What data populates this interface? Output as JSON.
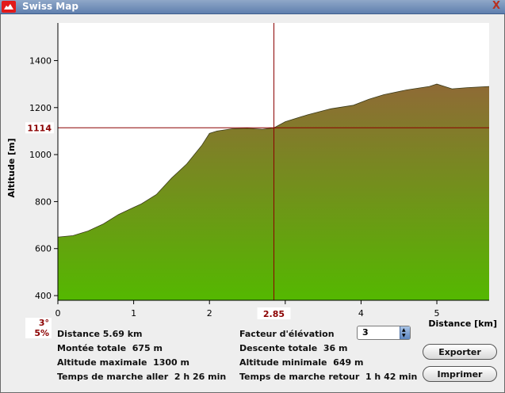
{
  "window": {
    "title": "Swiss Map",
    "close_label": "X"
  },
  "chart_data": {
    "type": "area",
    "xlabel": "Distance [km]",
    "ylabel": "Altitude [m]",
    "xlim": [
      0,
      5.69
    ],
    "ylim": [
      380,
      1560
    ],
    "x_ticks": [
      "0",
      "1",
      "2",
      "3",
      "4",
      "5"
    ],
    "y_ticks": [
      "400",
      "600",
      "800",
      "1000",
      "1200",
      "1400"
    ],
    "x": [
      0,
      0.2,
      0.4,
      0.6,
      0.8,
      1.0,
      1.1,
      1.3,
      1.5,
      1.7,
      1.9,
      2.0,
      2.1,
      2.3,
      2.5,
      2.7,
      2.85,
      3.0,
      3.3,
      3.6,
      3.9,
      4.1,
      4.3,
      4.6,
      4.9,
      5.0,
      5.2,
      5.4,
      5.69
    ],
    "y": [
      649,
      655,
      675,
      705,
      745,
      775,
      790,
      830,
      900,
      960,
      1040,
      1090,
      1100,
      1110,
      1112,
      1108,
      1114,
      1140,
      1170,
      1195,
      1210,
      1235,
      1255,
      1275,
      1290,
      1300,
      1280,
      1285,
      1290
    ],
    "cursor": {
      "x": 2.85,
      "x_label": "2.85",
      "y": 1114,
      "y_label": "1114"
    },
    "colors": {
      "fill_top": "#8f6a36",
      "fill_bottom": "#54b800",
      "cursor": "#8b0000",
      "plot_bg": "#ffffff"
    }
  },
  "slope": {
    "degrees": "3°",
    "percent": "5%"
  },
  "stats": {
    "distance": "Distance 5.69 km",
    "total_ascent": "Montée totale  675 m",
    "max_altitude": "Altitude maximale  1300 m",
    "walk_time_out": "Temps de marche aller  2 h 26 min",
    "elevation_factor_label": "Facteur d'élévation",
    "total_descent": "Descente totale  36 m",
    "min_altitude": "Altitude minimale  649 m",
    "walk_time_return": "Temps de marche retour  1 h 42 min"
  },
  "elevation_factor": {
    "value": "3"
  },
  "buttons": {
    "export": "Exporter",
    "print": "Imprimer"
  }
}
